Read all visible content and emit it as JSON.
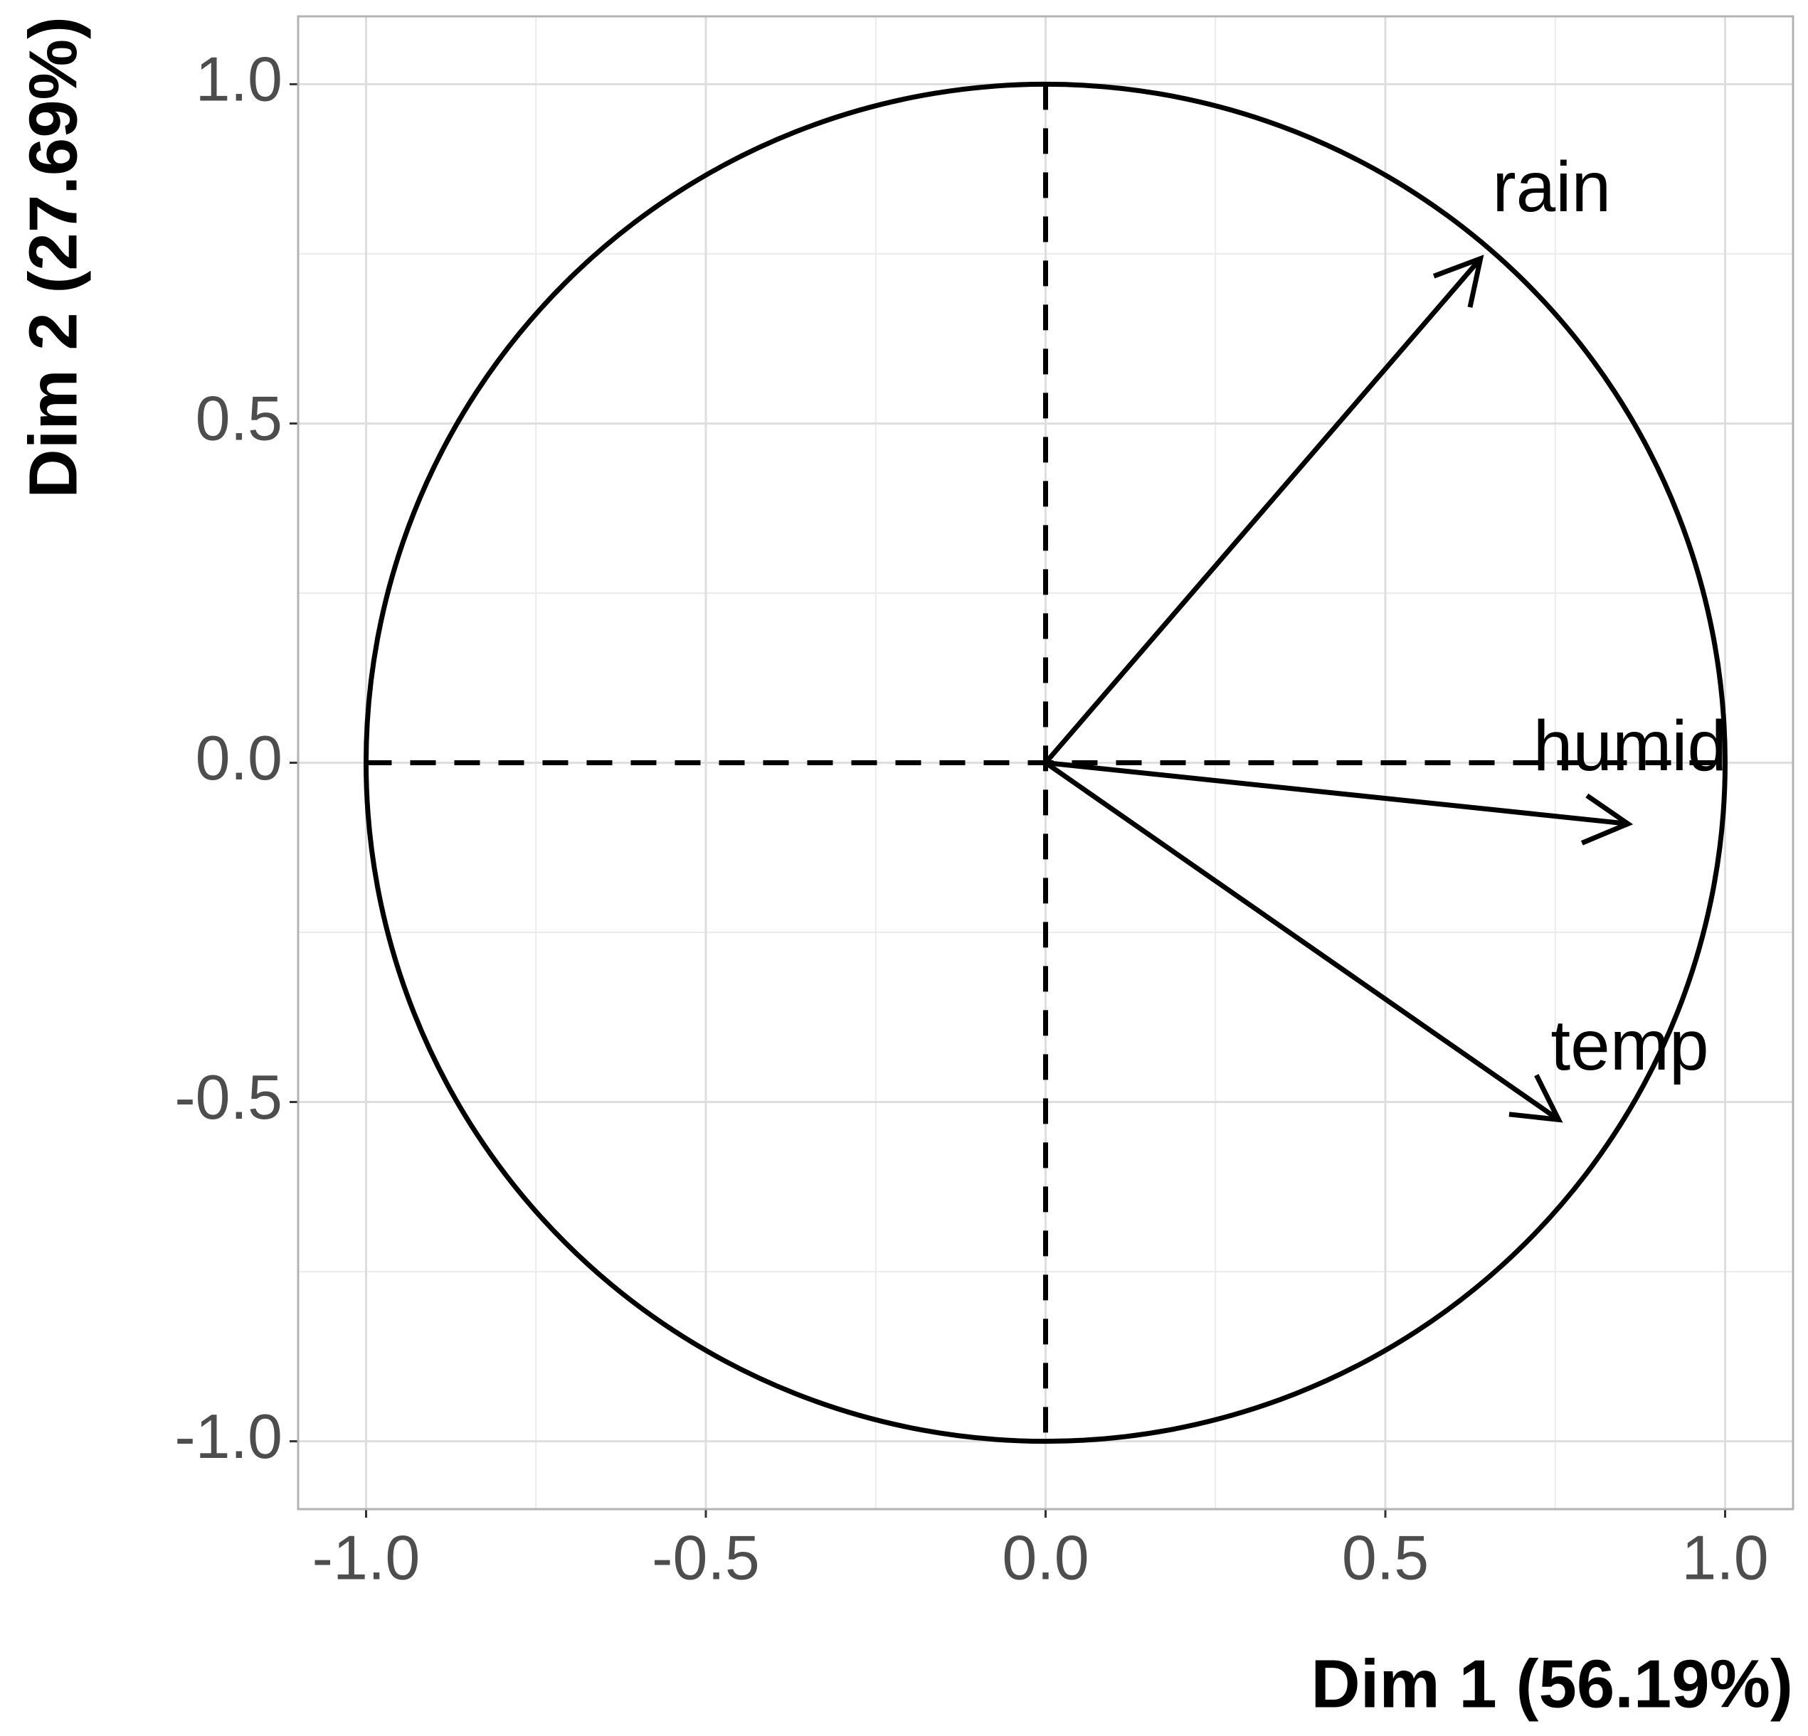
{
  "chart_data": {
    "type": "pca-correlation-circle",
    "xlabel": "Dim 1 (56.19%)",
    "ylabel": "Dim 2 (27.69%)",
    "categories": [
      "rain",
      "humid",
      "temp"
    ],
    "x": [
      0.64,
      0.857,
      0.755
    ],
    "values": [
      0.743,
      -0.09,
      -0.526
    ],
    "color": "#000000",
    "xlim": [
      -1.1,
      1.1
    ],
    "ylim": [
      -1.1,
      1.1
    ],
    "xticks": [
      {
        "value": -1,
        "label": "-1.0"
      },
      {
        "value": -0.5,
        "label": "-0.5"
      },
      {
        "value": 0,
        "label": "0.0"
      },
      {
        "value": 0.5,
        "label": "0.5"
      },
      {
        "value": 1,
        "label": "1.0"
      }
    ],
    "yticks": [
      {
        "value": -1,
        "label": "-1.0"
      },
      {
        "value": -0.5,
        "label": "-0.5"
      },
      {
        "value": 0,
        "label": "0.0"
      },
      {
        "value": 0.5,
        "label": "0.5"
      },
      {
        "value": 1,
        "label": "1.0"
      }
    ],
    "x_minor_ticks": [
      -0.75,
      -0.25,
      0.25,
      0.75
    ],
    "y_minor_ticks": [
      -0.75,
      -0.25,
      0.25,
      0.75
    ],
    "grid": true
  }
}
